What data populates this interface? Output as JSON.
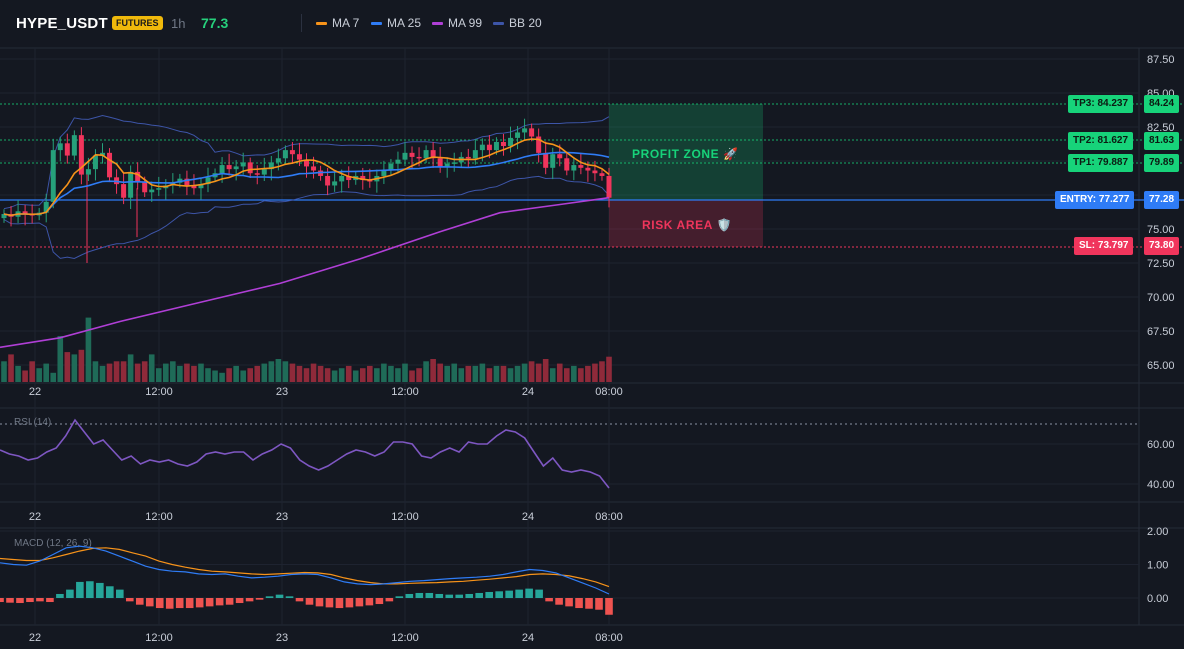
{
  "header": {
    "symbol": "HYPE_USDT",
    "badge": "FUTURES",
    "timeframe": "1h",
    "last_price": "77.3",
    "legend": [
      {
        "label": "MA 7",
        "color": "#f7931a"
      },
      {
        "label": "MA 25",
        "color": "#2f7cf6"
      },
      {
        "label": "MA 99",
        "color": "#b03fd6"
      },
      {
        "label": "BB 20",
        "color": "#3d55a8"
      }
    ]
  },
  "levels": {
    "tp3": "TP3: 84.237",
    "tp3_axis": "84.24",
    "tp2": "TP2: 81.627",
    "tp2_axis": "81.63",
    "tp1": "TP1: 79.887",
    "tp1_axis": "79.89",
    "entry": "ENTRY: 77.277",
    "entry_axis": "77.28",
    "sl": "SL: 73.797",
    "sl_axis": "73.80"
  },
  "zones": {
    "profit": "PROFIT ZONE 🚀",
    "risk": "RISK AREA 🛡️"
  },
  "colors": {
    "up": "#26a17b",
    "down": "#f0355c",
    "profit_green": "#17d37a",
    "entry_blue": "#2f7cf6",
    "sl_red": "#f0355c"
  },
  "chart_data": [
    {
      "type": "candlestick",
      "title": "HYPE_USDT",
      "x_ticks": [
        "22",
        "12:00",
        "23",
        "12:00",
        "24",
        "08:00"
      ],
      "y_ticks": [
        "87.50",
        "85.00",
        "82.50",
        "80.00",
        "77.50",
        "75.00",
        "72.50",
        "70.00",
        "67.50",
        "65.00"
      ],
      "ylim": [
        63.5,
        88.5
      ],
      "close_series": [
        76.1,
        75.9,
        76.3,
        76.1,
        76.0,
        76.2,
        77.0,
        80.8,
        81.3,
        80.4,
        81.9,
        79.0,
        79.4,
        80.4,
        80.6,
        78.8,
        78.3,
        77.3,
        79.2,
        78.5,
        77.7,
        77.9,
        78.0,
        78.2,
        78.4,
        78.7,
        78.2,
        78.0,
        78.3,
        78.8,
        79.1,
        79.7,
        79.4,
        79.6,
        79.9,
        79.1,
        79.0,
        79.4,
        79.9,
        80.2,
        80.8,
        80.5,
        80.1,
        79.6,
        79.3,
        78.9,
        78.2,
        78.5,
        78.9,
        78.6,
        78.9,
        78.6,
        78.5,
        78.9,
        79.3,
        79.8,
        80.1,
        80.6,
        80.3,
        80.2,
        80.8,
        80.2,
        79.6,
        79.8,
        79.9,
        80.3,
        80.2,
        80.8,
        81.2,
        80.8,
        81.4,
        81.1,
        81.7,
        82.1,
        82.4,
        81.8,
        80.6,
        79.5,
        80.5,
        80.2,
        79.3,
        79.7,
        79.5,
        79.3,
        79.1,
        78.9,
        77.3
      ],
      "volume": [
        9,
        12,
        7,
        5,
        9,
        6,
        8,
        4,
        20,
        13,
        12,
        14,
        28,
        9,
        7,
        8,
        9,
        9,
        12,
        8,
        9,
        12,
        6,
        8,
        9,
        7,
        8,
        7,
        8,
        6,
        5,
        4,
        6,
        7,
        5,
        6,
        7,
        8,
        9,
        10,
        9,
        8,
        7,
        6,
        8,
        7,
        6,
        5,
        6,
        7,
        5,
        6,
        7,
        6,
        8,
        7,
        6,
        8,
        5,
        6,
        9,
        10,
        8,
        7,
        8,
        6,
        7,
        7,
        8,
        6,
        7,
        7,
        6,
        7,
        8,
        9,
        8,
        10,
        6,
        8,
        6,
        7,
        6,
        7,
        8,
        9,
        11
      ],
      "indicators": [
        "MA 7",
        "MA 25",
        "MA 99",
        "BB 20"
      ]
    },
    {
      "type": "line",
      "title": "RSI (14)",
      "y_ticks": [
        "60.00",
        "40.00"
      ],
      "ylim": [
        30,
        76
      ],
      "values": [
        57,
        55,
        54,
        52,
        53,
        56,
        58,
        64,
        72,
        66,
        60,
        62,
        57,
        52,
        54,
        50,
        52,
        51,
        52,
        50,
        49,
        51,
        55,
        56,
        55,
        56,
        56,
        52,
        55,
        57,
        60,
        58,
        52,
        49,
        47,
        49,
        52,
        55,
        57,
        56,
        54,
        56,
        61,
        61,
        60,
        54,
        53,
        56,
        58,
        56,
        61,
        60,
        60,
        64,
        67,
        66,
        63,
        56,
        49,
        53,
        47,
        46,
        47,
        46,
        44,
        38
      ]
    },
    {
      "type": "line",
      "title": "MACD (12, 26, 9)",
      "y_ticks": [
        "2.00",
        "1.00",
        "0.00"
      ],
      "ylim": [
        -0.9,
        2.1
      ],
      "series": [
        {
          "values": [
            1.05,
            1.0,
            0.98,
            1.1,
            1.3,
            1.5,
            1.55,
            1.5,
            1.4,
            1.25,
            1.1,
            0.95,
            0.85,
            0.8,
            0.78,
            0.72,
            0.7,
            0.72,
            0.65,
            0.6,
            0.62,
            0.65,
            0.7,
            0.72,
            0.7,
            0.6,
            0.48,
            0.42,
            0.4,
            0.42,
            0.46,
            0.5,
            0.52,
            0.55,
            0.58,
            0.6,
            0.62,
            0.65,
            0.7,
            0.78,
            0.85,
            0.82,
            0.75,
            0.6,
            0.45,
            0.3,
            0.12
          ]
        },
        {
          "values": [
            1.18,
            1.15,
            1.12,
            1.12,
            1.2,
            1.3,
            1.4,
            1.48,
            1.5,
            1.45,
            1.35,
            1.25,
            1.1,
            1.0,
            0.92,
            0.85,
            0.8,
            0.78,
            0.75,
            0.72,
            0.7,
            0.72,
            0.74,
            0.76,
            0.75,
            0.7,
            0.6,
            0.52,
            0.46,
            0.42,
            0.42,
            0.44,
            0.45,
            0.46,
            0.48,
            0.5,
            0.53,
            0.56,
            0.6,
            0.64,
            0.7,
            0.72,
            0.7,
            0.66,
            0.58,
            0.48,
            0.34
          ]
        }
      ],
      "histogram": [
        -0.12,
        -0.14,
        -0.15,
        -0.12,
        -0.1,
        -0.12,
        0.12,
        0.25,
        0.48,
        0.5,
        0.45,
        0.35,
        0.25,
        -0.1,
        -0.2,
        -0.25,
        -0.3,
        -0.32,
        -0.3,
        -0.3,
        -0.28,
        -0.25,
        -0.22,
        -0.2,
        -0.15,
        -0.1,
        -0.05,
        0.05,
        0.1,
        0.05,
        -0.1,
        -0.2,
        -0.25,
        -0.28,
        -0.3,
        -0.28,
        -0.25,
        -0.22,
        -0.18,
        -0.1,
        0.05,
        0.12,
        0.15,
        0.15,
        0.12,
        0.1,
        0.1,
        0.12,
        0.15,
        0.18,
        0.2,
        0.22,
        0.25,
        0.28,
        0.25,
        -0.1,
        -0.2,
        -0.25,
        -0.3,
        -0.32,
        -0.35,
        -0.5
      ]
    }
  ]
}
